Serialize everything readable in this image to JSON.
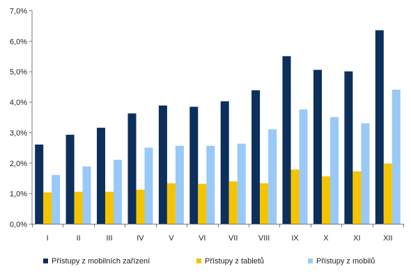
{
  "chart_data": {
    "type": "bar",
    "categories": [
      "I",
      "II",
      "III",
      "IV",
      "V",
      "VI",
      "VII",
      "VIII",
      "IX",
      "X",
      "XI",
      "XII"
    ],
    "series": [
      {
        "name": "Přístupy z mobilních zařízení",
        "color": "#0c2f5c",
        "values": [
          2.6,
          2.92,
          3.15,
          3.62,
          3.88,
          3.84,
          4.02,
          4.38,
          5.5,
          5.05,
          5.0,
          6.35
        ]
      },
      {
        "name": "Přístupy z tabletů",
        "color": "#f5c400",
        "values": [
          1.03,
          1.05,
          1.05,
          1.12,
          1.33,
          1.31,
          1.39,
          1.33,
          1.78,
          1.56,
          1.72,
          1.98
        ]
      },
      {
        "name": "Přístupy z mobilů",
        "color": "#99c9f7",
        "values": [
          1.6,
          1.88,
          2.1,
          2.5,
          2.56,
          2.56,
          2.63,
          3.1,
          3.75,
          3.5,
          3.3,
          4.4
        ]
      }
    ],
    "y_ticks": [
      "0,0%",
      "1,0%",
      "2,0%",
      "3,0%",
      "4,0%",
      "5,0%",
      "6,0%",
      "7,0%"
    ],
    "ylim": [
      0,
      7
    ],
    "ytick_step": 1,
    "grid": false,
    "legend": "bottom"
  }
}
